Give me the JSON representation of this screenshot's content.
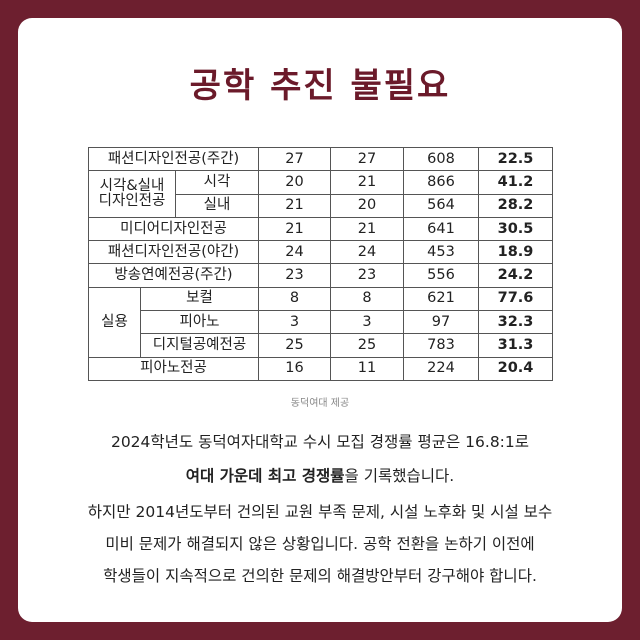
{
  "title": "공학 추진 불필요",
  "table": {
    "rows": [
      [
        "패션디자인전공(주간)",
        27,
        27,
        608,
        22.5
      ],
      [
        [
          "시각&실내",
          "디자인전공"
        ],
        "시각",
        20,
        21,
        866,
        41.2
      ],
      [
        "실내",
        21,
        20,
        564,
        28.2
      ],
      [
        "미디어디자인전공",
        21,
        21,
        641,
        30.5
      ],
      [
        "패션디자인전공(야간)",
        24,
        24,
        453,
        18.9
      ],
      [
        "방송연예전공(주간)",
        23,
        23,
        556,
        24.2
      ],
      [
        "실용",
        "보컬",
        8,
        8,
        621,
        77.6
      ],
      [
        "피아노",
        3,
        3,
        97,
        32.3
      ],
      [
        "디지털공예전공",
        25,
        25,
        783,
        31.3
      ],
      [
        "피아노전공",
        16,
        11,
        224,
        20.4
      ]
    ],
    "caption": "동덕여대 제공"
  },
  "body": {
    "paragraph1": {
      "line1": "2024학년도 동덕여자대학교 수시 모집 경쟁률 평균은 16.8:1로",
      "line2_bold": "여대 가운데 최고 경쟁률",
      "line2_rest": "을 기록했습니다."
    },
    "paragraph2": {
      "lines": [
        "하지만 2014년도부터 건의된 교원 부족 문제, 시설 노후화 및 시설 보수",
        "미비 문제가 해결되지 않은 상황입니다. 공학 전환을 논하기 이전에",
        "학생들이 지속적으로 건의한 문제의 해결방안부터 강구해야 합니다."
      ]
    }
  }
}
